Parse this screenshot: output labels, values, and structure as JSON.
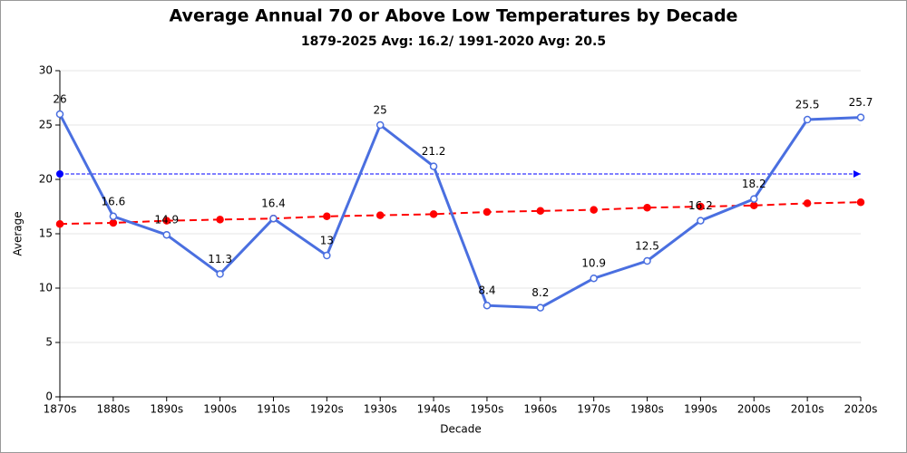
{
  "chart_data": {
    "type": "line",
    "title": "Average Annual 70 or Above Low Temperatures by Decade",
    "subtitle": "1879-2025 Avg: 16.2/ 1991-2020 Avg: 20.5",
    "x_label": "Decade",
    "y_label": "Average",
    "categories": [
      "1870s",
      "1880s",
      "1890s",
      "1900s",
      "1910s",
      "1920s",
      "1930s",
      "1940s",
      "1950s",
      "1960s",
      "1970s",
      "1980s",
      "1990s",
      "2000s",
      "2010s",
      "2020s"
    ],
    "series": [
      {
        "color": "#4a6fe0",
        "line_style": "solid",
        "marker_fill": "#ffffff",
        "data_labels": true,
        "values": [
          26,
          16.6,
          14.9,
          11.3,
          16.4,
          13,
          25,
          21.2,
          8.4,
          8.2,
          10.9,
          12.5,
          16.2,
          18.2,
          25.5,
          25.7
        ]
      },
      {
        "color": "#ff0000",
        "line_style": "dashed",
        "marker_fill": "#ff0000",
        "data_labels": false,
        "values": [
          15.9,
          16.0,
          16.2,
          16.3,
          16.4,
          16.6,
          16.7,
          16.8,
          17.0,
          17.1,
          17.2,
          17.4,
          17.5,
          17.6,
          17.8,
          17.9
        ]
      }
    ],
    "reference_line": {
      "value": 20.5,
      "color": "#0000ff"
    },
    "ylim": [
      0,
      30
    ],
    "yticks": [
      0,
      5,
      10,
      15,
      20,
      25,
      30
    ],
    "grid": true
  }
}
